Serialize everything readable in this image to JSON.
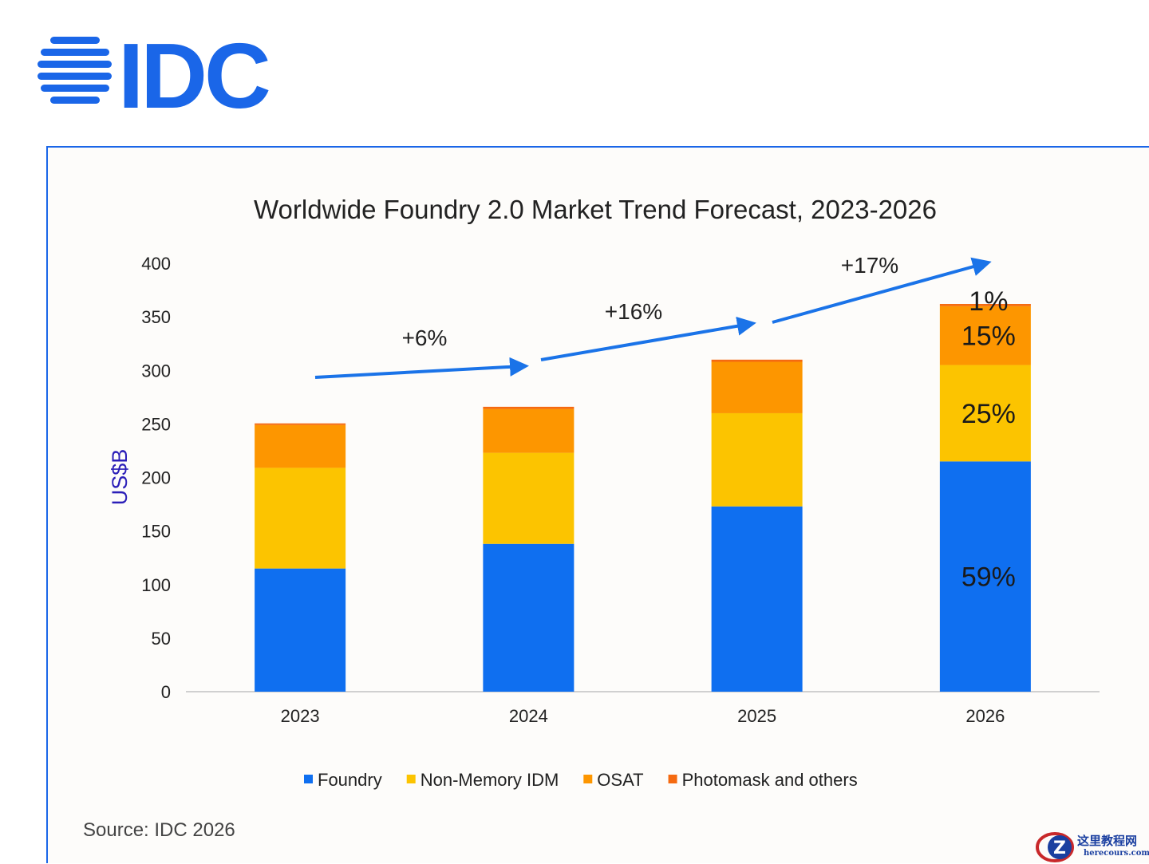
{
  "logo": {
    "text": "IDC",
    "color": "#1a66e8"
  },
  "source": "Source: IDC 2026",
  "watermark": {
    "cn": "这里教程网",
    "en": "herecours.com"
  },
  "chart_data": {
    "type": "bar",
    "stacked": true,
    "title": "Worldwide Foundry 2.0 Market Trend Forecast, 2023-2026",
    "xlabel": "",
    "ylabel": "US$B",
    "ylim": [
      0,
      400
    ],
    "yticks": [
      0,
      50,
      100,
      150,
      200,
      250,
      300,
      350,
      400
    ],
    "grid": false,
    "legend_position": "bottom",
    "categories": [
      "2023",
      "2024",
      "2025",
      "2026"
    ],
    "series": [
      {
        "name": "Foundry",
        "color": "#0f6ff0",
        "values": [
          115,
          138,
          173,
          215
        ]
      },
      {
        "name": "Non-Memory IDM",
        "color": "#fcc400",
        "values": [
          94,
          85,
          87,
          90
        ]
      },
      {
        "name": "OSAT",
        "color": "#fd9600",
        "values": [
          40,
          41,
          48,
          55
        ]
      },
      {
        "name": "Photomask and others",
        "color": "#f56a10",
        "values": [
          1.5,
          2,
          2,
          2
        ]
      }
    ],
    "data_labels": [
      {
        "category": "2026",
        "series": "Foundry",
        "text": "59%"
      },
      {
        "category": "2026",
        "series": "Non-Memory IDM",
        "text": "25%"
      },
      {
        "category": "2026",
        "series": "OSAT",
        "text": "15%"
      },
      {
        "category": "2026",
        "series": "Photomask and others",
        "text": "1%"
      }
    ],
    "growth_annotations": [
      {
        "from": "2023",
        "to": "2024",
        "text": "+6%"
      },
      {
        "from": "2024",
        "to": "2025",
        "text": "+16%"
      },
      {
        "from": "2025",
        "to": "2026",
        "text": "+17%"
      }
    ],
    "arrow_color": "#1a73e8"
  }
}
